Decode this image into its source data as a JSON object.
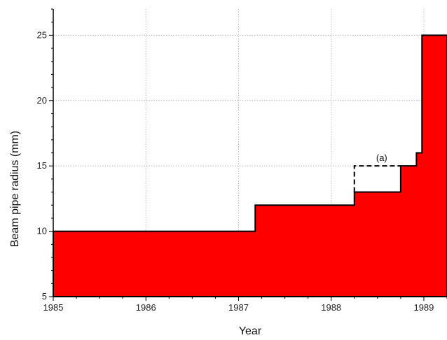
{
  "chart_data": {
    "type": "area",
    "title": "",
    "xlabel": "Year",
    "ylabel": "Beam pipe radius (mm)",
    "xlim": [
      1985,
      1989.25
    ],
    "ylim": [
      5,
      27
    ],
    "x_ticks": [
      1985,
      1986,
      1987,
      1988,
      1989
    ],
    "y_ticks": [
      5,
      10,
      15,
      20,
      25
    ],
    "grid": true,
    "legend": "none",
    "series": [
      {
        "fill_color": "#ff0000",
        "step": true,
        "points": [
          [
            1985,
            10
          ],
          [
            1987.18,
            10
          ],
          [
            1987.18,
            12
          ],
          [
            1988.25,
            12
          ],
          [
            1988.25,
            13
          ],
          [
            1988.75,
            13
          ],
          [
            1988.75,
            15
          ],
          [
            1988.92,
            15
          ],
          [
            1988.92,
            16
          ],
          [
            1988.98,
            16
          ],
          [
            1988.98,
            25
          ],
          [
            1989.25,
            25
          ]
        ]
      }
    ],
    "annotations": [
      {
        "label": "(a)",
        "style": "dashed",
        "points": [
          [
            1988.25,
            13
          ],
          [
            1988.25,
            15
          ],
          [
            1988.75,
            15
          ]
        ],
        "label_at": [
          1988.5,
          15
        ]
      }
    ]
  }
}
